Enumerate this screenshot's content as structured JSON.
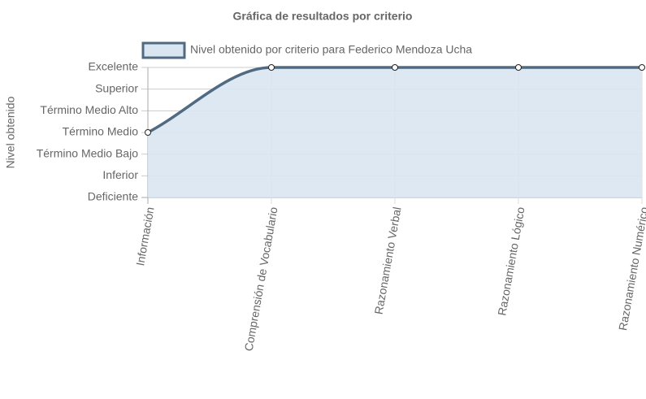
{
  "chart_data": {
    "type": "line",
    "title": "Gráfica de resultados por criterio",
    "y_label": "Nivel obtenido",
    "categories": [
      "Información",
      "Comprensión de Vocabulario",
      "Razonamiento Verbal",
      "Razonamiento Lógico",
      "Razonamiento Numérico"
    ],
    "series": [
      {
        "name": "Nivel obtenido por criterio para Federico Mendoza Ucha",
        "color": "#506a82",
        "fill": "#d9e6f2",
        "values": [
          3,
          6,
          6,
          6,
          6
        ]
      }
    ],
    "ylim": [
      0,
      6
    ],
    "yticks": [
      {
        "value": 0,
        "label": "Deficiente"
      },
      {
        "value": 1,
        "label": "Inferior"
      },
      {
        "value": 2,
        "label": "Término Medio Bajo"
      },
      {
        "value": 3,
        "label": "Término Medio"
      },
      {
        "value": 4,
        "label": "Término Medio Alto"
      },
      {
        "value": 5,
        "label": "Superior"
      },
      {
        "value": 6,
        "label": "Excelente"
      }
    ],
    "grid": true,
    "legend": "top"
  }
}
